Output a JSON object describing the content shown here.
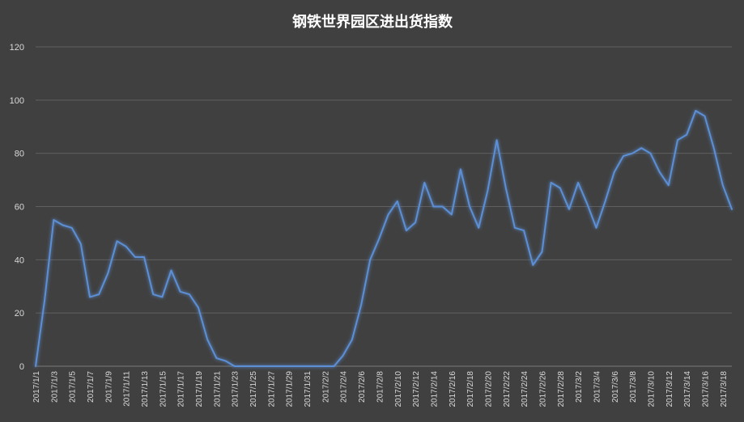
{
  "chart_data": {
    "type": "line",
    "title": "钢铁世界园区进出货指数",
    "ylim": [
      0,
      120
    ],
    "y_ticks": [
      "0",
      "20",
      "40",
      "60",
      "80",
      "100",
      "120"
    ],
    "grid": true,
    "line_color": "#5b8fd6",
    "background": "#404040",
    "x": [
      "2017/1/1",
      "2017/1/2",
      "2017/1/3",
      "2017/1/4",
      "2017/1/5",
      "2017/1/6",
      "2017/1/7",
      "2017/1/8",
      "2017/1/9",
      "2017/1/10",
      "2017/1/11",
      "2017/1/12",
      "2017/1/13",
      "2017/1/14",
      "2017/1/15",
      "2017/1/16",
      "2017/1/17",
      "2017/1/18",
      "2017/1/19",
      "2017/1/20",
      "2017/1/21",
      "2017/1/22",
      "2017/1/23",
      "2017/1/24",
      "2017/1/25",
      "2017/1/26",
      "2017/1/27",
      "2017/1/28",
      "2017/1/29",
      "2017/1/30",
      "2017/1/31",
      "2017/2/1",
      "2017/2/2",
      "2017/2/3",
      "2017/2/4",
      "2017/2/5",
      "2017/2/6",
      "2017/2/7",
      "2017/2/8",
      "2017/2/9",
      "2017/2/10",
      "2017/2/11",
      "2017/2/12",
      "2017/2/13",
      "2017/2/14",
      "2017/2/15",
      "2017/2/16",
      "2017/2/17",
      "2017/2/18",
      "2017/2/19",
      "2017/2/20",
      "2017/2/21",
      "2017/2/22",
      "2017/2/23",
      "2017/2/24",
      "2017/2/25",
      "2017/2/26",
      "2017/2/27",
      "2017/2/28",
      "2017/3/1",
      "2017/3/2",
      "2017/3/3",
      "2017/3/4",
      "2017/3/5",
      "2017/3/6",
      "2017/3/7",
      "2017/3/8",
      "2017/3/9",
      "2017/3/10",
      "2017/3/11",
      "2017/3/12",
      "2017/3/13",
      "2017/3/14",
      "2017/3/15",
      "2017/3/16",
      "2017/3/17",
      "2017/3/18",
      "2017/3/19"
    ],
    "x_tick_labels": [
      "2017/1/1",
      "2017/1/3",
      "2017/1/5",
      "2017/1/7",
      "2017/1/9",
      "2017/1/11",
      "2017/1/13",
      "2017/1/15",
      "2017/1/17",
      "2017/1/19",
      "2017/1/21",
      "2017/1/23",
      "2017/1/25",
      "2017/1/27",
      "2017/1/29",
      "2017/1/31",
      "2017/2/2",
      "2017/2/4",
      "2017/2/6",
      "2017/2/8",
      "2017/2/10",
      "2017/2/12",
      "2017/2/14",
      "2017/2/16",
      "2017/2/18",
      "2017/2/20",
      "2017/2/22",
      "2017/2/24",
      "2017/2/26",
      "2017/2/28",
      "2017/3/2",
      "2017/3/4",
      "2017/3/6",
      "2017/3/8",
      "2017/3/10",
      "2017/3/12",
      "2017/3/14",
      "2017/3/16",
      "2017/3/18"
    ],
    "values": [
      0,
      25,
      55,
      53,
      52,
      46,
      26,
      27,
      35,
      47,
      45,
      41,
      41,
      27,
      26,
      36,
      28,
      27,
      22,
      10,
      3,
      2,
      0,
      0,
      0,
      0,
      0,
      0,
      0,
      0,
      0,
      0,
      0,
      0,
      4,
      10,
      23,
      40,
      48,
      57,
      62,
      51,
      54,
      69,
      60,
      60,
      57,
      74,
      60,
      52,
      66,
      85,
      67,
      52,
      51,
      38,
      43,
      69,
      67,
      59,
      69,
      61,
      52,
      62,
      73,
      79,
      80,
      82,
      80,
      73,
      68,
      85,
      87,
      96,
      94,
      82,
      68,
      59
    ]
  }
}
